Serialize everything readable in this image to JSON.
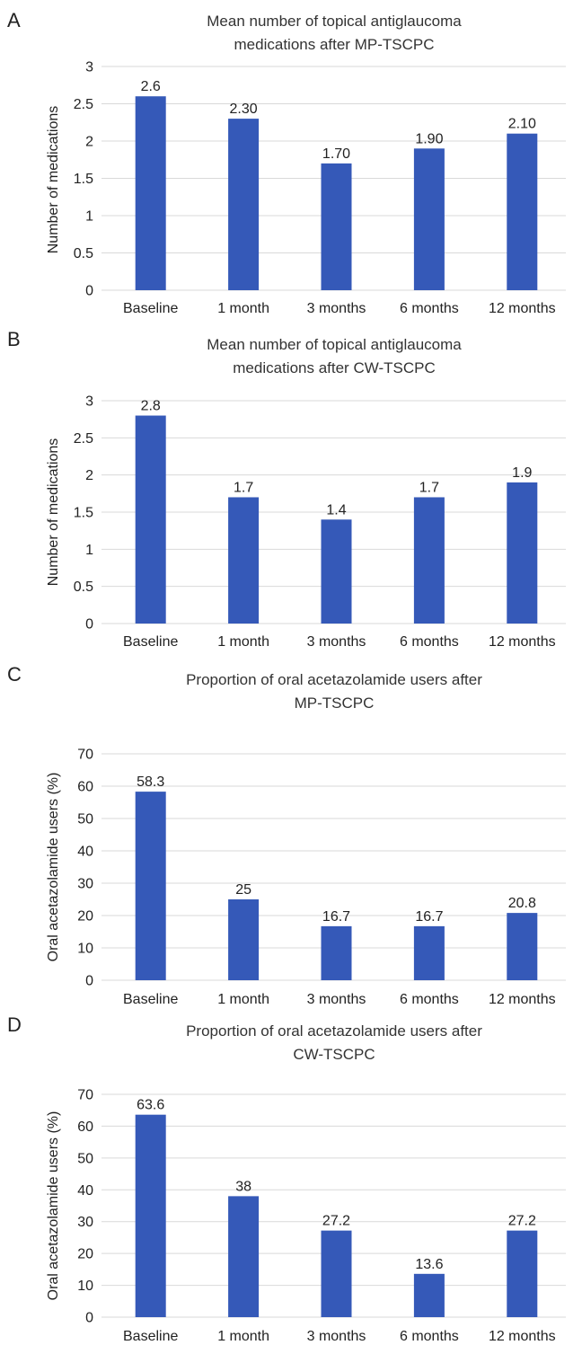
{
  "chart_data": [
    {
      "type": "bar",
      "panel": "A",
      "title_lines": [
        "Mean number of topical antiglaucoma",
        "medications after MP-TSCPC"
      ],
      "title": "Mean number of topical antiglaucoma medications after MP-TSCPC",
      "xlabel": "",
      "ylabel": "Number of medications",
      "categories": [
        "Baseline",
        "1 month",
        "3 months",
        "6 months",
        "12 months"
      ],
      "values": [
        2.6,
        2.3,
        1.7,
        1.9,
        2.1
      ],
      "data_labels": [
        "2.6",
        "2.30",
        "1.70",
        "1.90",
        "2.10"
      ],
      "yticks": [
        "0",
        "0.5",
        "1",
        "1.5",
        "2",
        "2.5",
        "3"
      ],
      "ylim": [
        0,
        3
      ],
      "grid": true,
      "bar_color": "#3559b8"
    },
    {
      "type": "bar",
      "panel": "B",
      "title_lines": [
        "Mean number of topical antiglaucoma",
        "medications after CW-TSCPC"
      ],
      "title": "Mean number of topical antiglaucoma medications after CW-TSCPC",
      "xlabel": "",
      "ylabel": "Number of medications",
      "categories": [
        "Baseline",
        "1 month",
        "3 months",
        "6 months",
        "12 months"
      ],
      "values": [
        2.8,
        1.7,
        1.4,
        1.7,
        1.9
      ],
      "data_labels": [
        "2.8",
        "1.7",
        "1.4",
        "1.7",
        "1.9"
      ],
      "yticks": [
        "0",
        "0.5",
        "1",
        "1.5",
        "2",
        "2.5",
        "3"
      ],
      "ylim": [
        0,
        3
      ],
      "grid": true,
      "bar_color": "#3559b8"
    },
    {
      "type": "bar",
      "panel": "C",
      "title_lines": [
        "Proportion of oral acetazolamide users after",
        "MP-TSCPC"
      ],
      "title": "Proportion of oral acetazolamide users after MP-TSCPC",
      "xlabel": "",
      "ylabel": "Oral acetazolamide users (%)",
      "categories": [
        "Baseline",
        "1 month",
        "3 months",
        "6 months",
        "12 months"
      ],
      "values": [
        58.3,
        25,
        16.7,
        16.7,
        20.8
      ],
      "data_labels": [
        "58.3",
        "25",
        "16.7",
        "16.7",
        "20.8"
      ],
      "yticks": [
        "0",
        "10",
        "20",
        "30",
        "40",
        "50",
        "60",
        "70"
      ],
      "ylim": [
        0,
        70
      ],
      "grid": true,
      "bar_color": "#3559b8"
    },
    {
      "type": "bar",
      "panel": "D",
      "title_lines": [
        "Proportion of oral acetazolamide users after",
        "CW-TSCPC"
      ],
      "title": "Proportion of oral acetazolamide users after CW-TSCPC",
      "xlabel": "",
      "ylabel": "Oral acetazolamide users (%)",
      "categories": [
        "Baseline",
        "1 month",
        "3 months",
        "6 months",
        "12 months"
      ],
      "values": [
        63.6,
        38,
        27.2,
        13.6,
        27.2
      ],
      "data_labels": [
        "63.6",
        "38",
        "27.2",
        "13.6",
        "27.2"
      ],
      "yticks": [
        "0",
        "10",
        "20",
        "30",
        "40",
        "50",
        "60",
        "70"
      ],
      "ylim": [
        0,
        70
      ],
      "grid": true,
      "bar_color": "#3559b8"
    }
  ]
}
